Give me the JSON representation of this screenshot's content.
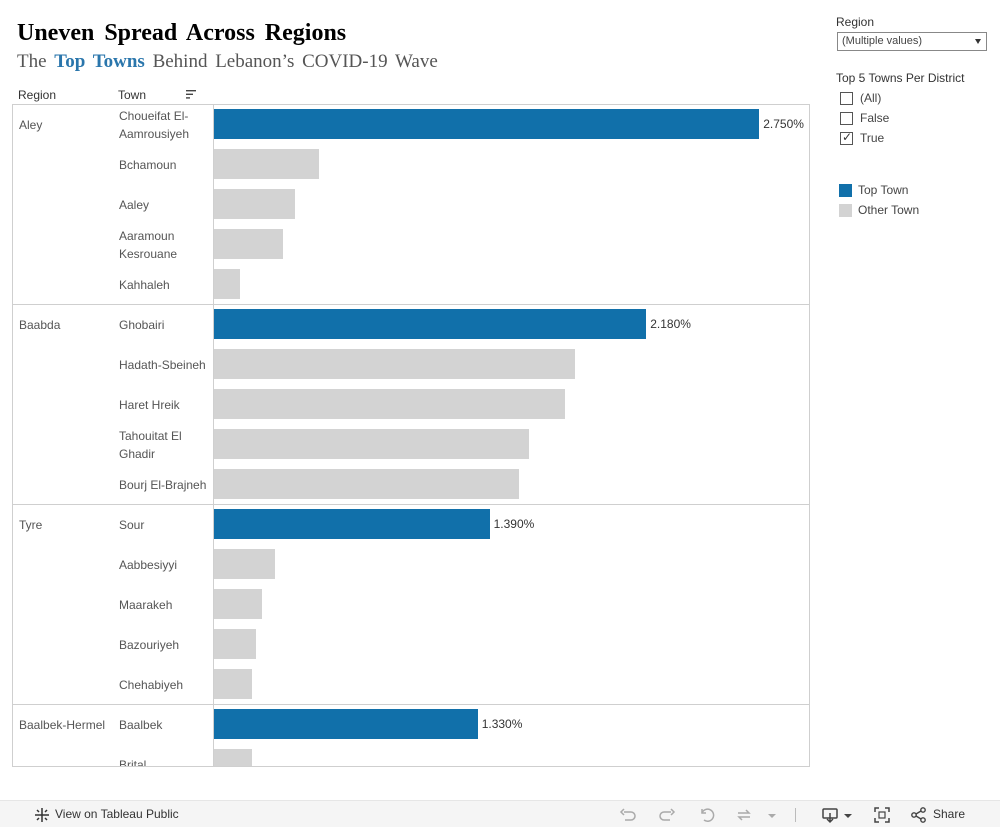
{
  "header": {
    "title": "Uneven Spread Across Regions",
    "subtitle_pre": "The ",
    "subtitle_highlight": "Top Towns",
    "subtitle_post": " Behind Lebanon’s COVID-19 Wave"
  },
  "columns": {
    "region": "Region",
    "town": "Town"
  },
  "colors": {
    "top_town": "#1170AA",
    "other_town": "#D3D3D3",
    "highlight_text": "#2A76AC"
  },
  "chart_data": {
    "type": "bar",
    "orientation": "horizontal",
    "title": "Uneven Spread Across Regions",
    "xlabel": "",
    "ylabel": "",
    "xlim": [
      0,
      2.9
    ],
    "value_unit": "%",
    "groups": [
      {
        "region": "Aley",
        "towns": [
          {
            "name": "Choueifat El-Aamrousiyeh",
            "value": 2.75,
            "top": true,
            "label": "2.750%"
          },
          {
            "name": "Bchamoun",
            "value": 0.53,
            "top": false
          },
          {
            "name": "Aaley",
            "value": 0.41,
            "top": false
          },
          {
            "name": "Aaramoun Kesrouane",
            "value": 0.35,
            "top": false
          },
          {
            "name": "Kahhaleh",
            "value": 0.13,
            "top": false
          }
        ]
      },
      {
        "region": "Baabda",
        "towns": [
          {
            "name": "Ghobairi",
            "value": 2.18,
            "top": true,
            "label": "2.180%"
          },
          {
            "name": "Hadath-Sbeineh",
            "value": 1.82,
            "top": false
          },
          {
            "name": "Haret Hreik",
            "value": 1.77,
            "top": false
          },
          {
            "name": "Tahouitat El Ghadir",
            "value": 1.59,
            "top": false
          },
          {
            "name": "Bourj El-Brajneh",
            "value": 1.54,
            "top": false
          }
        ]
      },
      {
        "region": "Tyre",
        "towns": [
          {
            "name": "Sour",
            "value": 1.39,
            "top": true,
            "label": "1.390%"
          },
          {
            "name": "Aabbesiyyi",
            "value": 0.31,
            "top": false
          },
          {
            "name": "Maarakeh",
            "value": 0.24,
            "top": false
          },
          {
            "name": "Bazouriyeh",
            "value": 0.21,
            "top": false
          },
          {
            "name": "Chehabiyeh",
            "value": 0.19,
            "top": false
          }
        ]
      },
      {
        "region": "Baalbek-Hermel",
        "towns": [
          {
            "name": "Baalbek",
            "value": 1.33,
            "top": true,
            "label": "1.330%"
          },
          {
            "name": "Brital",
            "value": 0.19,
            "top": false
          }
        ]
      }
    ]
  },
  "filters": {
    "region": {
      "title": "Region",
      "value": "(Multiple values)"
    },
    "top5": {
      "title": "Top 5 Towns Per District",
      "options": [
        {
          "label": "(All)",
          "checked": false
        },
        {
          "label": "False",
          "checked": false
        },
        {
          "label": "True",
          "checked": true
        }
      ]
    }
  },
  "legend": {
    "top": "Top Town",
    "other": "Other Town"
  },
  "footer": {
    "view_label": "View on Tableau Public",
    "share_label": "Share"
  }
}
